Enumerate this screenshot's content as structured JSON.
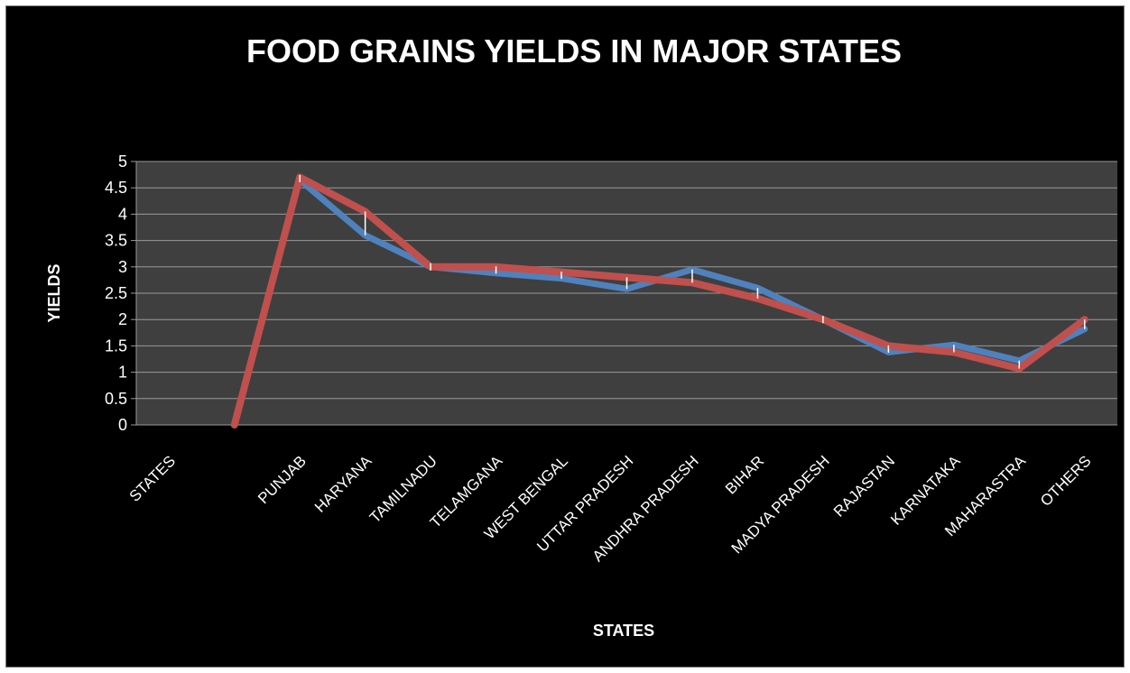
{
  "chart_data": {
    "type": "line",
    "title": "FOOD GRAINS YIELDS IN MAJOR STATES",
    "xlabel": "STATES",
    "ylabel": "YIELDS",
    "categories": [
      "STATES",
      "",
      "PUNJAB",
      "HARYANA",
      "TAMILNADU",
      "TELAMGANA",
      "WEST BENGAL",
      "UTTAR PRADESH",
      "ANDHRA PRADESH",
      "BIHAR",
      "MADYA PRADESH",
      "RAJASTAN",
      "KARNATAKA",
      "MAHARASTRA",
      "OTHERS"
    ],
    "ylim": [
      0,
      5
    ],
    "yticks": [
      "0",
      "0.5",
      "1",
      "1.5",
      "2",
      "2.5",
      "3",
      "3.5",
      "4",
      "4.5",
      "5"
    ],
    "grid": true,
    "series": [
      {
        "color": "#4f81bd",
        "values": [
          null,
          null,
          4.65,
          3.6,
          3.0,
          2.88,
          2.78,
          2.58,
          2.95,
          2.6,
          2.0,
          1.38,
          1.52,
          1.22,
          1.82
        ]
      },
      {
        "color": "#c0504d",
        "values": [
          null,
          0,
          4.7,
          4.05,
          3.0,
          3.0,
          2.9,
          2.8,
          2.7,
          2.4,
          2.0,
          1.5,
          1.38,
          1.07,
          2.0
        ]
      }
    ]
  }
}
